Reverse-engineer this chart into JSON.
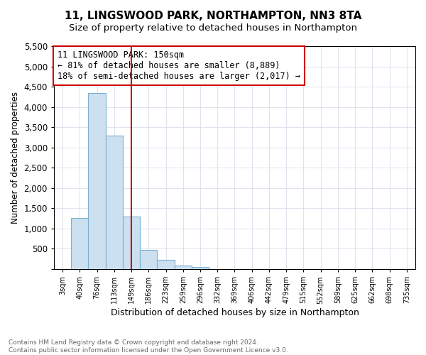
{
  "title": "11, LINGSWOOD PARK, NORTHAMPTON, NN3 8TA",
  "subtitle": "Size of property relative to detached houses in Northampton",
  "xlabel": "Distribution of detached houses by size in Northampton",
  "ylabel": "Number of detached properties",
  "footnote1": "Contains HM Land Registry data © Crown copyright and database right 2024.",
  "footnote2": "Contains public sector information licensed under the Open Government Licence v3.0.",
  "annotation_line1": "11 LINGSWOOD PARK: 150sqm",
  "annotation_line2": "← 81% of detached houses are smaller (8,889)",
  "annotation_line3": "18% of semi-detached houses are larger (2,017) →",
  "bar_color": "#cce0f0",
  "bar_edge_color": "#7ab0d4",
  "vline_color": "#cc0000",
  "annotation_box_edge": "#cc0000",
  "categories": [
    "3sqm",
    "40sqm",
    "76sqm",
    "113sqm",
    "149sqm",
    "186sqm",
    "223sqm",
    "259sqm",
    "296sqm",
    "332sqm",
    "369sqm",
    "406sqm",
    "442sqm",
    "479sqm",
    "515sqm",
    "552sqm",
    "589sqm",
    "625sqm",
    "662sqm",
    "698sqm",
    "735sqm"
  ],
  "values": [
    0,
    1270,
    4350,
    3300,
    1290,
    480,
    230,
    80,
    50,
    5,
    3,
    2,
    1,
    0,
    0,
    0,
    0,
    0,
    0,
    0,
    0
  ],
  "ylim": [
    0,
    5500
  ],
  "yticks": [
    0,
    500,
    1000,
    1500,
    2000,
    2500,
    3000,
    3500,
    4000,
    4500,
    5000,
    5500
  ],
  "vline_x": 4.0,
  "title_fontsize": 11,
  "subtitle_fontsize": 9.5
}
